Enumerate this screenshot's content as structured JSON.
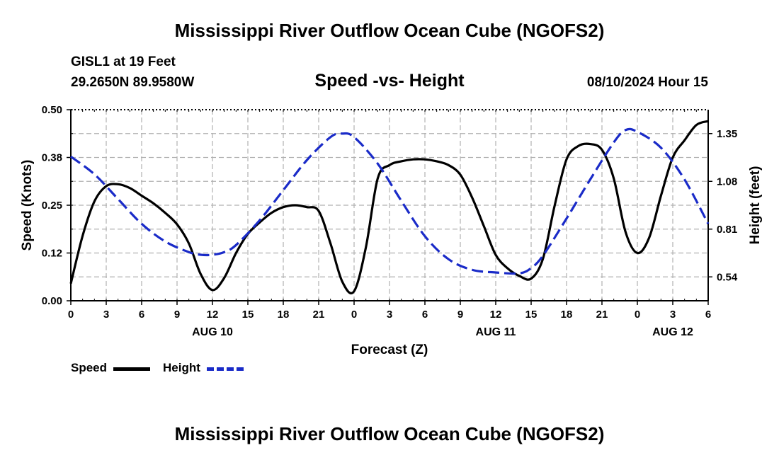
{
  "header": {
    "title": "Mississippi River Outflow Ocean Cube (NGOFS2)",
    "station": "GISL1 at 19 Feet",
    "coords": "29.2650N  89.9580W",
    "subtitle": "Speed -vs- Height",
    "datetime": "08/10/2024 Hour 15"
  },
  "footer": {
    "title": "Mississippi River Outflow Ocean Cube (NGOFS2)"
  },
  "legend": {
    "speed_label": "Speed",
    "height_label": "Height"
  },
  "colors": {
    "speed": "#000000",
    "height": "#1a2bc8",
    "grid": "#b0b0b0"
  },
  "chart_data": {
    "type": "line",
    "xlabel": "Forecast (Z)",
    "ylabel_left": "Speed (Knots)",
    "ylabel_right": "Height (feet)",
    "x_unit": "hours since 08/10/2024 00Z",
    "xlim": [
      0,
      54
    ],
    "x_tick_positions": [
      0,
      3,
      6,
      9,
      12,
      15,
      18,
      21,
      24,
      27,
      30,
      33,
      36,
      39,
      42,
      45,
      48,
      51,
      54
    ],
    "x_tick_labels": [
      "0",
      "3",
      "6",
      "9",
      "12",
      "15",
      "18",
      "21",
      "0",
      "3",
      "6",
      "9",
      "12",
      "15",
      "18",
      "21",
      "0",
      "3",
      "6"
    ],
    "date_labels": [
      {
        "x": 12,
        "label": "AUG 10"
      },
      {
        "x": 36,
        "label": "AUG 11"
      },
      {
        "x": 51,
        "label": "AUG 12"
      }
    ],
    "ylim_left": [
      0,
      0.5
    ],
    "y_left_ticks": [
      0.0,
      0.125,
      0.25,
      0.375,
      0.5
    ],
    "y_left_tick_labels": [
      "0.00",
      "0.12",
      "0.25",
      "0.38",
      "0.50"
    ],
    "ylim_right": [
      0.405,
      1.485
    ],
    "y_right_ticks": [
      0.54,
      0.81,
      1.08,
      1.35
    ],
    "y_right_tick_labels": [
      "0.54",
      "0.81",
      "1.08",
      "1.35"
    ],
    "series": [
      {
        "name": "Speed",
        "axis": "left",
        "style": "solid",
        "x": [
          0,
          1,
          2,
          3,
          4,
          5,
          6,
          7,
          8,
          9,
          10,
          11,
          12,
          13,
          14,
          15,
          16,
          17,
          18,
          19,
          20,
          21,
          22,
          23,
          24,
          25,
          26,
          27,
          28,
          29,
          30,
          31,
          32,
          33,
          34,
          35,
          36,
          37,
          38,
          39,
          40,
          41,
          42,
          43,
          44,
          45,
          46,
          47,
          48,
          49,
          50,
          51,
          52,
          53,
          54
        ],
        "values": [
          0.045,
          0.17,
          0.26,
          0.3,
          0.305,
          0.295,
          0.275,
          0.255,
          0.23,
          0.2,
          0.15,
          0.07,
          0.028,
          0.06,
          0.125,
          0.175,
          0.205,
          0.23,
          0.245,
          0.25,
          0.245,
          0.235,
          0.15,
          0.05,
          0.025,
          0.14,
          0.32,
          0.355,
          0.365,
          0.37,
          0.37,
          0.365,
          0.355,
          0.33,
          0.27,
          0.195,
          0.12,
          0.085,
          0.065,
          0.058,
          0.11,
          0.25,
          0.37,
          0.405,
          0.41,
          0.395,
          0.32,
          0.18,
          0.125,
          0.165,
          0.275,
          0.375,
          0.42,
          0.46,
          0.47
        ]
      },
      {
        "name": "Height",
        "axis": "right",
        "style": "dashed",
        "x": [
          0,
          2,
          4,
          6,
          8,
          10,
          11,
          12,
          13,
          14,
          16,
          18,
          20,
          22,
          23,
          24,
          26,
          28,
          30,
          32,
          34,
          36,
          38,
          39,
          40,
          42,
          44,
          46,
          47,
          48,
          50,
          52,
          54
        ],
        "values": [
          1.22,
          1.12,
          0.98,
          0.84,
          0.74,
          0.68,
          0.665,
          0.665,
          0.68,
          0.72,
          0.86,
          1.03,
          1.2,
          1.33,
          1.35,
          1.33,
          1.18,
          0.97,
          0.77,
          0.64,
          0.58,
          0.565,
          0.56,
          0.59,
          0.66,
          0.87,
          1.09,
          1.3,
          1.37,
          1.36,
          1.27,
          1.09,
          0.84
        ]
      }
    ]
  }
}
